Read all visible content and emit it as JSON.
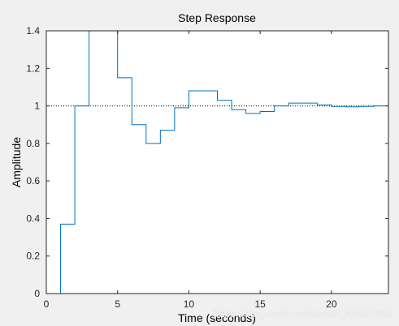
{
  "chart_data": {
    "type": "line",
    "title": "Step Response",
    "xlabel": "Time (seconds)",
    "ylabel": "Amplitude",
    "xlim": [
      0,
      24
    ],
    "ylim": [
      0,
      1.4
    ],
    "xticks": [
      0,
      5,
      10,
      15,
      20
    ],
    "yticks": [
      0,
      0.2,
      0.4,
      0.6,
      0.8,
      1,
      1.2,
      1.4
    ],
    "xtick_labels": [
      "0",
      "5",
      "10",
      "15",
      "20"
    ],
    "ytick_labels": [
      "0",
      "0.2",
      "0.4",
      "0.6",
      "0.8",
      "1",
      "1.2",
      "1.4"
    ],
    "grid": false,
    "series": [
      {
        "style": "stairs",
        "color": "#0072bd",
        "sample_time": 1,
        "x": [
          0,
          1,
          2,
          3,
          4,
          5,
          6,
          7,
          8,
          9,
          10,
          11,
          12,
          13,
          14,
          15,
          16,
          17,
          18,
          19,
          20,
          21,
          22,
          23,
          24
        ],
        "y": [
          0,
          0.37,
          1.0,
          1.4,
          1.4,
          1.15,
          0.9,
          0.8,
          0.87,
          0.99,
          1.08,
          1.08,
          1.03,
          0.98,
          0.96,
          0.97,
          1.0,
          1.015,
          1.015,
          1.005,
          0.997,
          0.995,
          0.997,
          1.0,
          1.0
        ]
      }
    ],
    "reference_line": {
      "y": 1,
      "style": "dotted",
      "color": "#000000"
    }
  },
  "watermark": "https://blog.csdn.net/weixin_42657460"
}
